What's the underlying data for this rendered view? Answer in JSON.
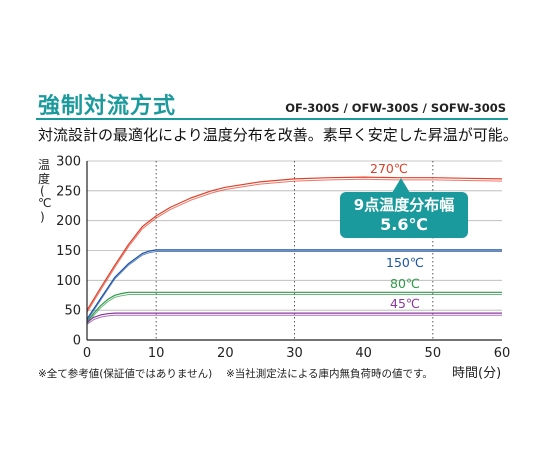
{
  "header": {
    "heading": "強制対流方式",
    "models": "OF-300S / OFW-300S / SOFW-300S",
    "description": "対流設計の最適化により温度分布を改善。素早く安定した昇温が可能。"
  },
  "callout": {
    "line1": "9点温度分布幅",
    "line2": "5.6℃"
  },
  "footnotes": {
    "note1": "※全て参考値(保証値ではありません)",
    "note2": "※当社測定法による庫内無負荷時の値です。"
  },
  "colors": {
    "accent": "#1a9a9c",
    "red": "#e0402a",
    "blue": "#1f55a8",
    "green": "#2e9a47",
    "purple": "#8a3a9c"
  },
  "chart_data": {
    "type": "line",
    "ylabel_chars": [
      "温",
      "度",
      "(",
      "℃",
      ")"
    ],
    "xlabel": "時間(分)",
    "xlim": [
      0,
      60
    ],
    "ylim": [
      0,
      300
    ],
    "x_ticks": [
      0,
      10,
      20,
      30,
      40,
      50,
      60
    ],
    "y_ticks": [
      0,
      50,
      100,
      150,
      200,
      250,
      300
    ],
    "grid": {
      "vertical_dotted": [
        10,
        30,
        50
      ],
      "horizontal": true
    },
    "series": [
      {
        "name": "270℃",
        "color": "#e0402a",
        "x": [
          0,
          2,
          4,
          6,
          8,
          10,
          12,
          15,
          18,
          20,
          25,
          30,
          35,
          40,
          45,
          50,
          55,
          60
        ],
        "y": [
          50,
          88,
          125,
          160,
          190,
          208,
          222,
          238,
          250,
          256,
          265,
          270,
          272,
          273,
          272,
          272,
          271,
          270
        ]
      },
      {
        "name": "150℃",
        "color": "#1f55a8",
        "x": [
          0,
          2,
          4,
          6,
          8,
          9,
          10,
          12,
          15,
          20,
          30,
          40,
          50,
          60
        ],
        "y": [
          35,
          70,
          105,
          128,
          145,
          149,
          151,
          151,
          151,
          151,
          151,
          151,
          151,
          151
        ]
      },
      {
        "name": "80℃",
        "color": "#2e9a47",
        "x": [
          0,
          1,
          2,
          3,
          4,
          5,
          6,
          7,
          8,
          10,
          20,
          30,
          40,
          50,
          60
        ],
        "y": [
          30,
          45,
          58,
          68,
          75,
          78,
          80,
          80,
          80,
          80,
          80,
          80,
          80,
          80,
          80
        ]
      },
      {
        "name": "45℃",
        "color": "#8a3a9c",
        "x": [
          0,
          1,
          2,
          3,
          4,
          6,
          10,
          20,
          30,
          40,
          50,
          60
        ],
        "y": [
          30,
          38,
          42,
          44,
          45,
          45,
          45,
          45,
          45,
          45,
          45,
          45
        ]
      }
    ]
  }
}
